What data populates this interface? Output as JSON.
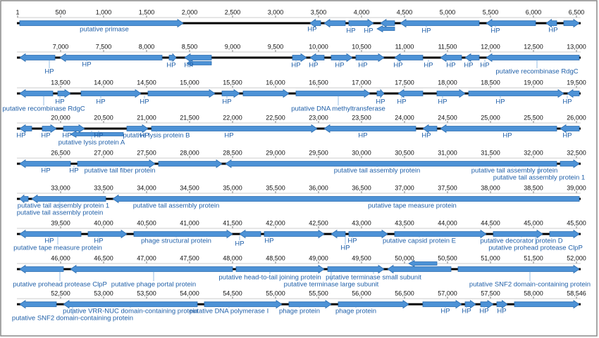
{
  "rows": [
    {
      "ticks": [
        "1",
        "500",
        "1,000",
        "1,500",
        "2,000",
        "2,500",
        "3,000",
        "3,500",
        "4,000",
        "4,500",
        "5,000",
        "5,500",
        "6,000",
        "6,500"
      ],
      "genes": [
        "putative primase",
        "HP",
        "HP",
        "HP",
        "HP",
        "HP",
        "HP"
      ]
    },
    {
      "ticks": [
        "7,000",
        "7,500",
        "8,000",
        "8,500",
        "9,000",
        "9,500",
        "10,000",
        "10,500",
        "11,000",
        "11,500",
        "12,000",
        "12,500",
        "13,000"
      ],
      "genes": [
        "HP",
        "HP",
        "HP",
        "HP",
        "HP",
        "HP",
        "HP",
        "HP",
        "HP",
        "HP",
        "HP",
        "HP",
        "HP",
        "putative recombinase RdgC"
      ]
    },
    {
      "ticks": [
        "13,500",
        "14,000",
        "14,500",
        "15,000",
        "15,500",
        "16,000",
        "16,500",
        "17,000",
        "17,500",
        "18,000",
        "18,500",
        "19,000",
        "19,500"
      ],
      "genes": [
        "putative recombinase RdgC",
        "HP",
        "HP",
        "HP",
        "HP",
        "putative DNA methyltransferase",
        "HP",
        "HP",
        "HP",
        "HP",
        "HP"
      ]
    },
    {
      "ticks": [
        "20,000",
        "20,500",
        "21,000",
        "21,500",
        "22,000",
        "22,500",
        "23,000",
        "23,500",
        "24,000",
        "24,500",
        "25,000",
        "25,500",
        "26,000"
      ],
      "genes": [
        "HP",
        "HP",
        "HP",
        "HP",
        "HP",
        "putative lysis protein A",
        "putative lysis protein B",
        "HP",
        "HP",
        "HP",
        "HP",
        "HP"
      ]
    },
    {
      "ticks": [
        "26,500",
        "27,000",
        "27,500",
        "28,000",
        "28,500",
        "29,000",
        "29,500",
        "30,000",
        "30,500",
        "31,000",
        "31,500",
        "32,000",
        "32,500"
      ],
      "genes": [
        "HP",
        "HP",
        "putative tail fiber protein",
        "putative tail assembly protein",
        "putative tail assembly protein",
        "putative tail assembly protein 1"
      ]
    },
    {
      "ticks": [
        "33,000",
        "33,500",
        "34,000",
        "34,500",
        "35,000",
        "35,500",
        "36,000",
        "36,500",
        "37,000",
        "37,500",
        "38,000",
        "38,500",
        "39,000"
      ],
      "genes": [
        "putative tail assembly protein 1",
        "putative tail assembly protein",
        "putative tail assembly protein",
        "putative tape measure protein"
      ]
    },
    {
      "ticks": [
        "39,500",
        "40,000",
        "40,500",
        "41,000",
        "41,500",
        "42,000",
        "42,500",
        "43,000",
        "43,500",
        "44,000",
        "44,500",
        "45,000",
        "45,500"
      ],
      "genes": [
        "HP",
        "putative tape measure protein",
        "HP",
        "phage structural protein",
        "HP",
        "HP",
        "HP",
        "HP",
        "putative capsid protein E",
        "putative decorator protein D",
        "putative prohead protease ClpP"
      ]
    },
    {
      "ticks": [
        "46,000",
        "46,500",
        "47,000",
        "47,500",
        "48,000",
        "48,500",
        "49,000",
        "49,500",
        "50,000",
        "50,500",
        "51,000",
        "51,500",
        "52,000"
      ],
      "genes": [
        "putative prohead protease ClpP",
        "putative phage portal protein",
        "putative head-to-tail joining protein",
        "putative terminase large subunit",
        "putative terminase small subunit",
        "putative SNF2 domain-containing protein"
      ]
    },
    {
      "ticks": [
        "52,500",
        "53,000",
        "53,500",
        "54,000",
        "54,500",
        "55,000",
        "55,500",
        "56,000",
        "56,500",
        "57,000",
        "57,500",
        "58,000",
        "58,546"
      ],
      "genes": [
        "putative VRR-NUC domain-containing protein",
        "putative SNF2 domain-containing protein",
        "putative DNA polymerase I",
        "phage protein",
        "phage protein",
        "HP",
        "HP",
        "HP",
        "HP"
      ]
    }
  ]
}
